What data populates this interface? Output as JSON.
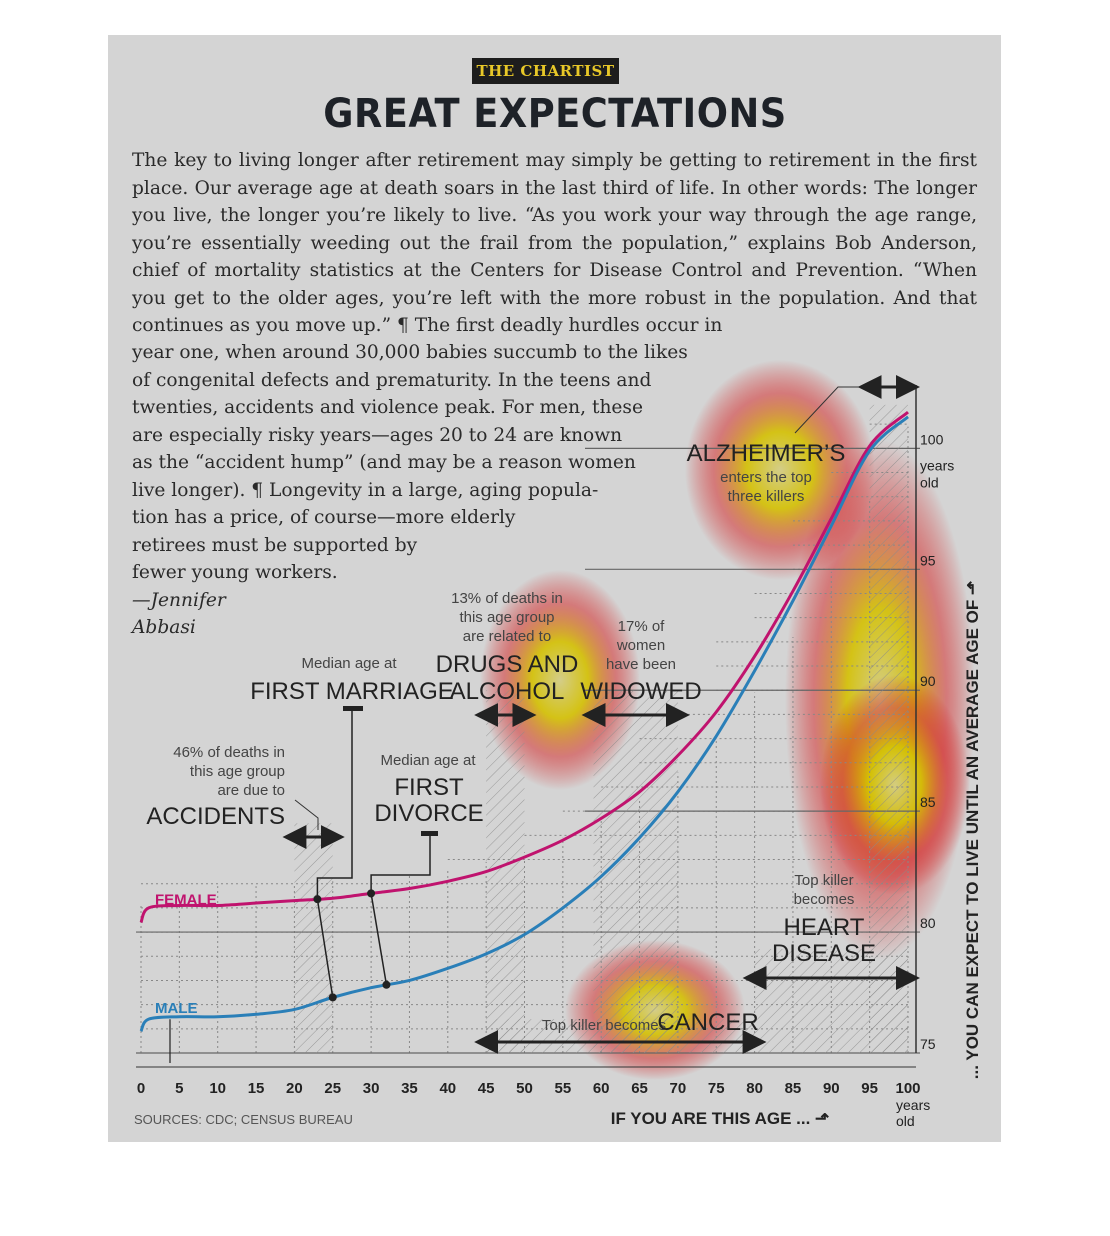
{
  "kicker": "THE CHARTIST",
  "title": "GREAT EXPECTATIONS",
  "body_lines_top": [
    "The key to living longer after retirement may simply be getting to retirement in the",
    "first place. Our average age at death soars in the last third of life. In other words: The",
    "longer you live, the longer you’re likely to live. “As you work your way through the",
    "age range, you’re essentially weeding out the frail from the population,” explains",
    "Bob Anderson, chief of mortality statistics at the Centers for Disease Control and",
    "Prevention. “When you get to the older ages, you’re left with the more robust in the",
    "population. And that continues as you move up.” ¶ The first deadly hurdles occur in"
  ],
  "body_lines_bottom": [
    "year one, when around 30,000 babies succumb to the likes",
    "of congenital defects and prematurity. In the teens and",
    "twenties, accidents and violence peak. For men, these",
    "are especially risky years—ages 20 to 24 are known",
    "as the “accident hump” (and may be a reason women",
    "live longer). ¶ Longevity in a large, aging popula-",
    "tion has a price, of course—more elderly",
    "retirees must be supported by",
    "fewer young workers."
  ],
  "byline": [
    "—Jennifer",
    "Abbasi"
  ],
  "chart_data": {
    "type": "line",
    "xlabel": "IF YOU ARE THIS AGE ... ⬏",
    "ylabel": "... YOU CAN EXPECT TO LIVE UNTIL AN AVERAGE AGE OF ⬏",
    "xlim": [
      0,
      100
    ],
    "ylim": [
      75,
      102
    ],
    "x_ticks": [
      "0",
      "5",
      "10",
      "15",
      "20",
      "25",
      "30",
      "35",
      "40",
      "45",
      "50",
      "55",
      "60",
      "65",
      "70",
      "75",
      "80",
      "85",
      "90",
      "95",
      "100"
    ],
    "x_tick_suffix": [
      "years",
      "old"
    ],
    "y_ticks": [
      75,
      80,
      85,
      90,
      95,
      100
    ],
    "y_tick_labels": [
      "75",
      "80",
      "85",
      "90",
      "95",
      "100"
    ],
    "y_top_suffix": [
      "years",
      "old"
    ],
    "series": [
      {
        "name": "FEMALE",
        "color": "#c0136e",
        "x": [
          0,
          1,
          5,
          10,
          15,
          20,
          25,
          30,
          35,
          40,
          45,
          50,
          55,
          60,
          65,
          70,
          75,
          80,
          85,
          90,
          95,
          100
        ],
        "y": [
          80.4,
          81.0,
          81.1,
          81.1,
          81.2,
          81.3,
          81.4,
          81.6,
          81.8,
          82.1,
          82.5,
          83.1,
          83.8,
          84.7,
          85.8,
          87.3,
          89.1,
          91.4,
          94.1,
          97.1,
          100.1,
          101.5
        ]
      },
      {
        "name": "MALE",
        "color": "#2a7fb8",
        "x": [
          0,
          1,
          5,
          10,
          15,
          20,
          25,
          30,
          35,
          40,
          45,
          50,
          55,
          60,
          65,
          70,
          75,
          80,
          85,
          90,
          95,
          100
        ],
        "y": [
          75.9,
          76.4,
          76.5,
          76.5,
          76.6,
          76.8,
          77.3,
          77.7,
          78.0,
          78.5,
          79.1,
          79.9,
          81.0,
          82.3,
          83.9,
          85.8,
          88.1,
          90.8,
          93.7,
          96.8,
          99.9,
          101.3
        ]
      }
    ],
    "annotations": {
      "accidents": {
        "small": [
          "46% of deaths in",
          "this age group",
          "are due to"
        ],
        "big": "ACCIDENTS",
        "range": [
          20,
          25
        ]
      },
      "first_marriage": {
        "small": "Median age at",
        "big": "FIRST MARRIAGE",
        "female_age": 23,
        "male_age": 25
      },
      "first_divorce": {
        "small": "Median age at",
        "big": [
          "FIRST",
          "DIVORCE"
        ],
        "female_age": 30,
        "male_age": 32
      },
      "drugs": {
        "small": [
          "13% of deaths in",
          "this age group",
          "are related to"
        ],
        "big": [
          "DRUGS AND",
          "ALCOHOL"
        ],
        "range": [
          45,
          50
        ]
      },
      "widowed": {
        "small": [
          "17% of",
          "women",
          "have been"
        ],
        "big": "WIDOWED",
        "range": [
          59,
          70
        ]
      },
      "alzheimers": {
        "big": "ALZHEIMER’S",
        "small": [
          "enters the top",
          "three killers"
        ],
        "range": [
          95,
          100
        ]
      },
      "heart": {
        "small": [
          "Top killer",
          "becomes"
        ],
        "big": [
          "HEART",
          "DISEASE"
        ],
        "range": [
          80,
          100
        ]
      },
      "cancer": {
        "small": "Top killer becomes",
        "big": "CANCER",
        "range": [
          45,
          80
        ]
      }
    }
  },
  "sources": "SOURCES: CDC; CENSUS BUREAU"
}
